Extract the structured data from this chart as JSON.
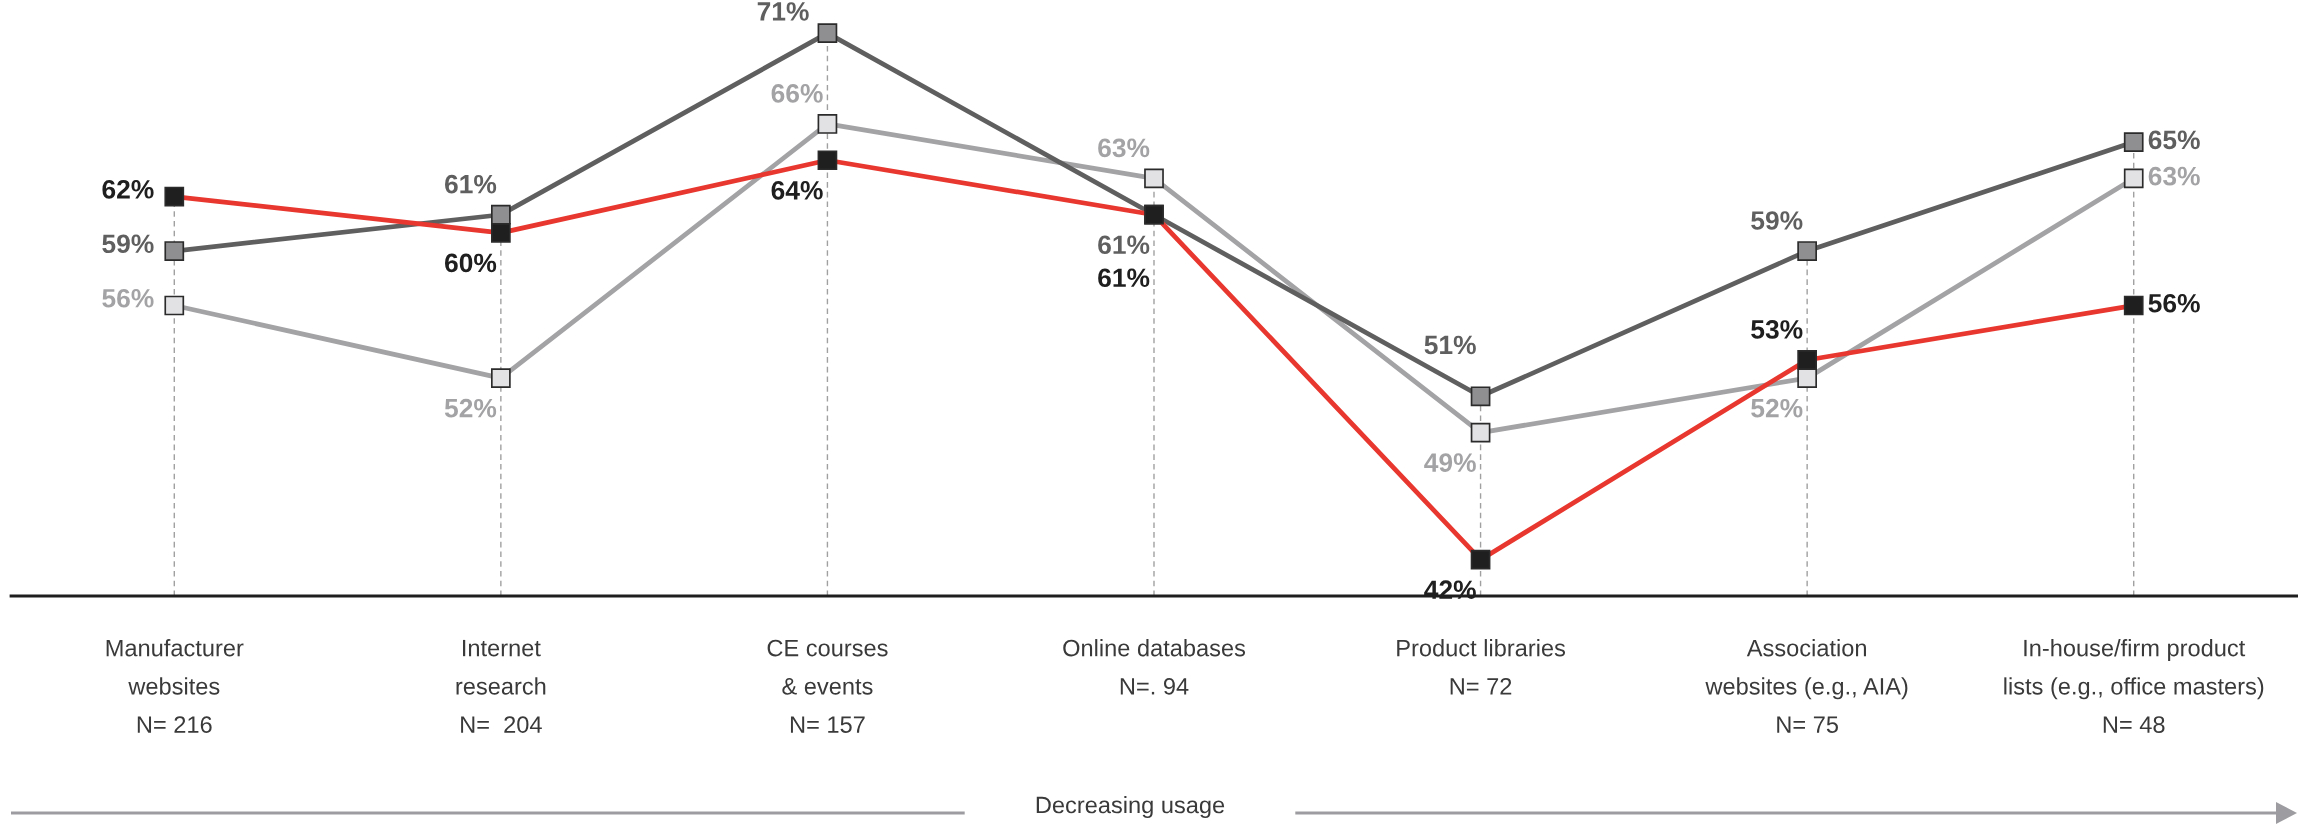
{
  "chart_data": {
    "type": "line",
    "categories": [
      "Manufacturer\nwebsites\nN= 216",
      "Internet\nresearch\nN=  204",
      "CE courses\n& events\nN= 157",
      "Online databases\nN=. 94",
      "Product libraries\nN= 72",
      "Association\nwebsites (e.g., AIA)\nN= 75",
      "In-house/firm product\nlists (e.g., office masters)\nN= 48"
    ],
    "series": [
      {
        "color": "#a3a3a6",
        "values": [
          56,
          52,
          66,
          63,
          49,
          52,
          63
        ],
        "value_labels": [
          "56%",
          "52%",
          "66%",
          "63%",
          "49%",
          "52%",
          "63%"
        ]
      },
      {
        "color": "#5f5f5f",
        "values": [
          59,
          61,
          71,
          61,
          51,
          59,
          65
        ],
        "value_labels": [
          "59%",
          "61%",
          "71%",
          "61%",
          "51%",
          "59%",
          "65%"
        ]
      },
      {
        "color": "#e8372e",
        "values": [
          62,
          60,
          64,
          61,
          42,
          53,
          56
        ],
        "value_labels": [
          "62%",
          "60%",
          "64%",
          "61%",
          "42%",
          "53%",
          "56%"
        ]
      }
    ],
    "grid": "x",
    "marker": "square",
    "line_style": "solid",
    "tick_labels": "x",
    "annotations": [
      "Decreasing usage"
    ]
  }
}
